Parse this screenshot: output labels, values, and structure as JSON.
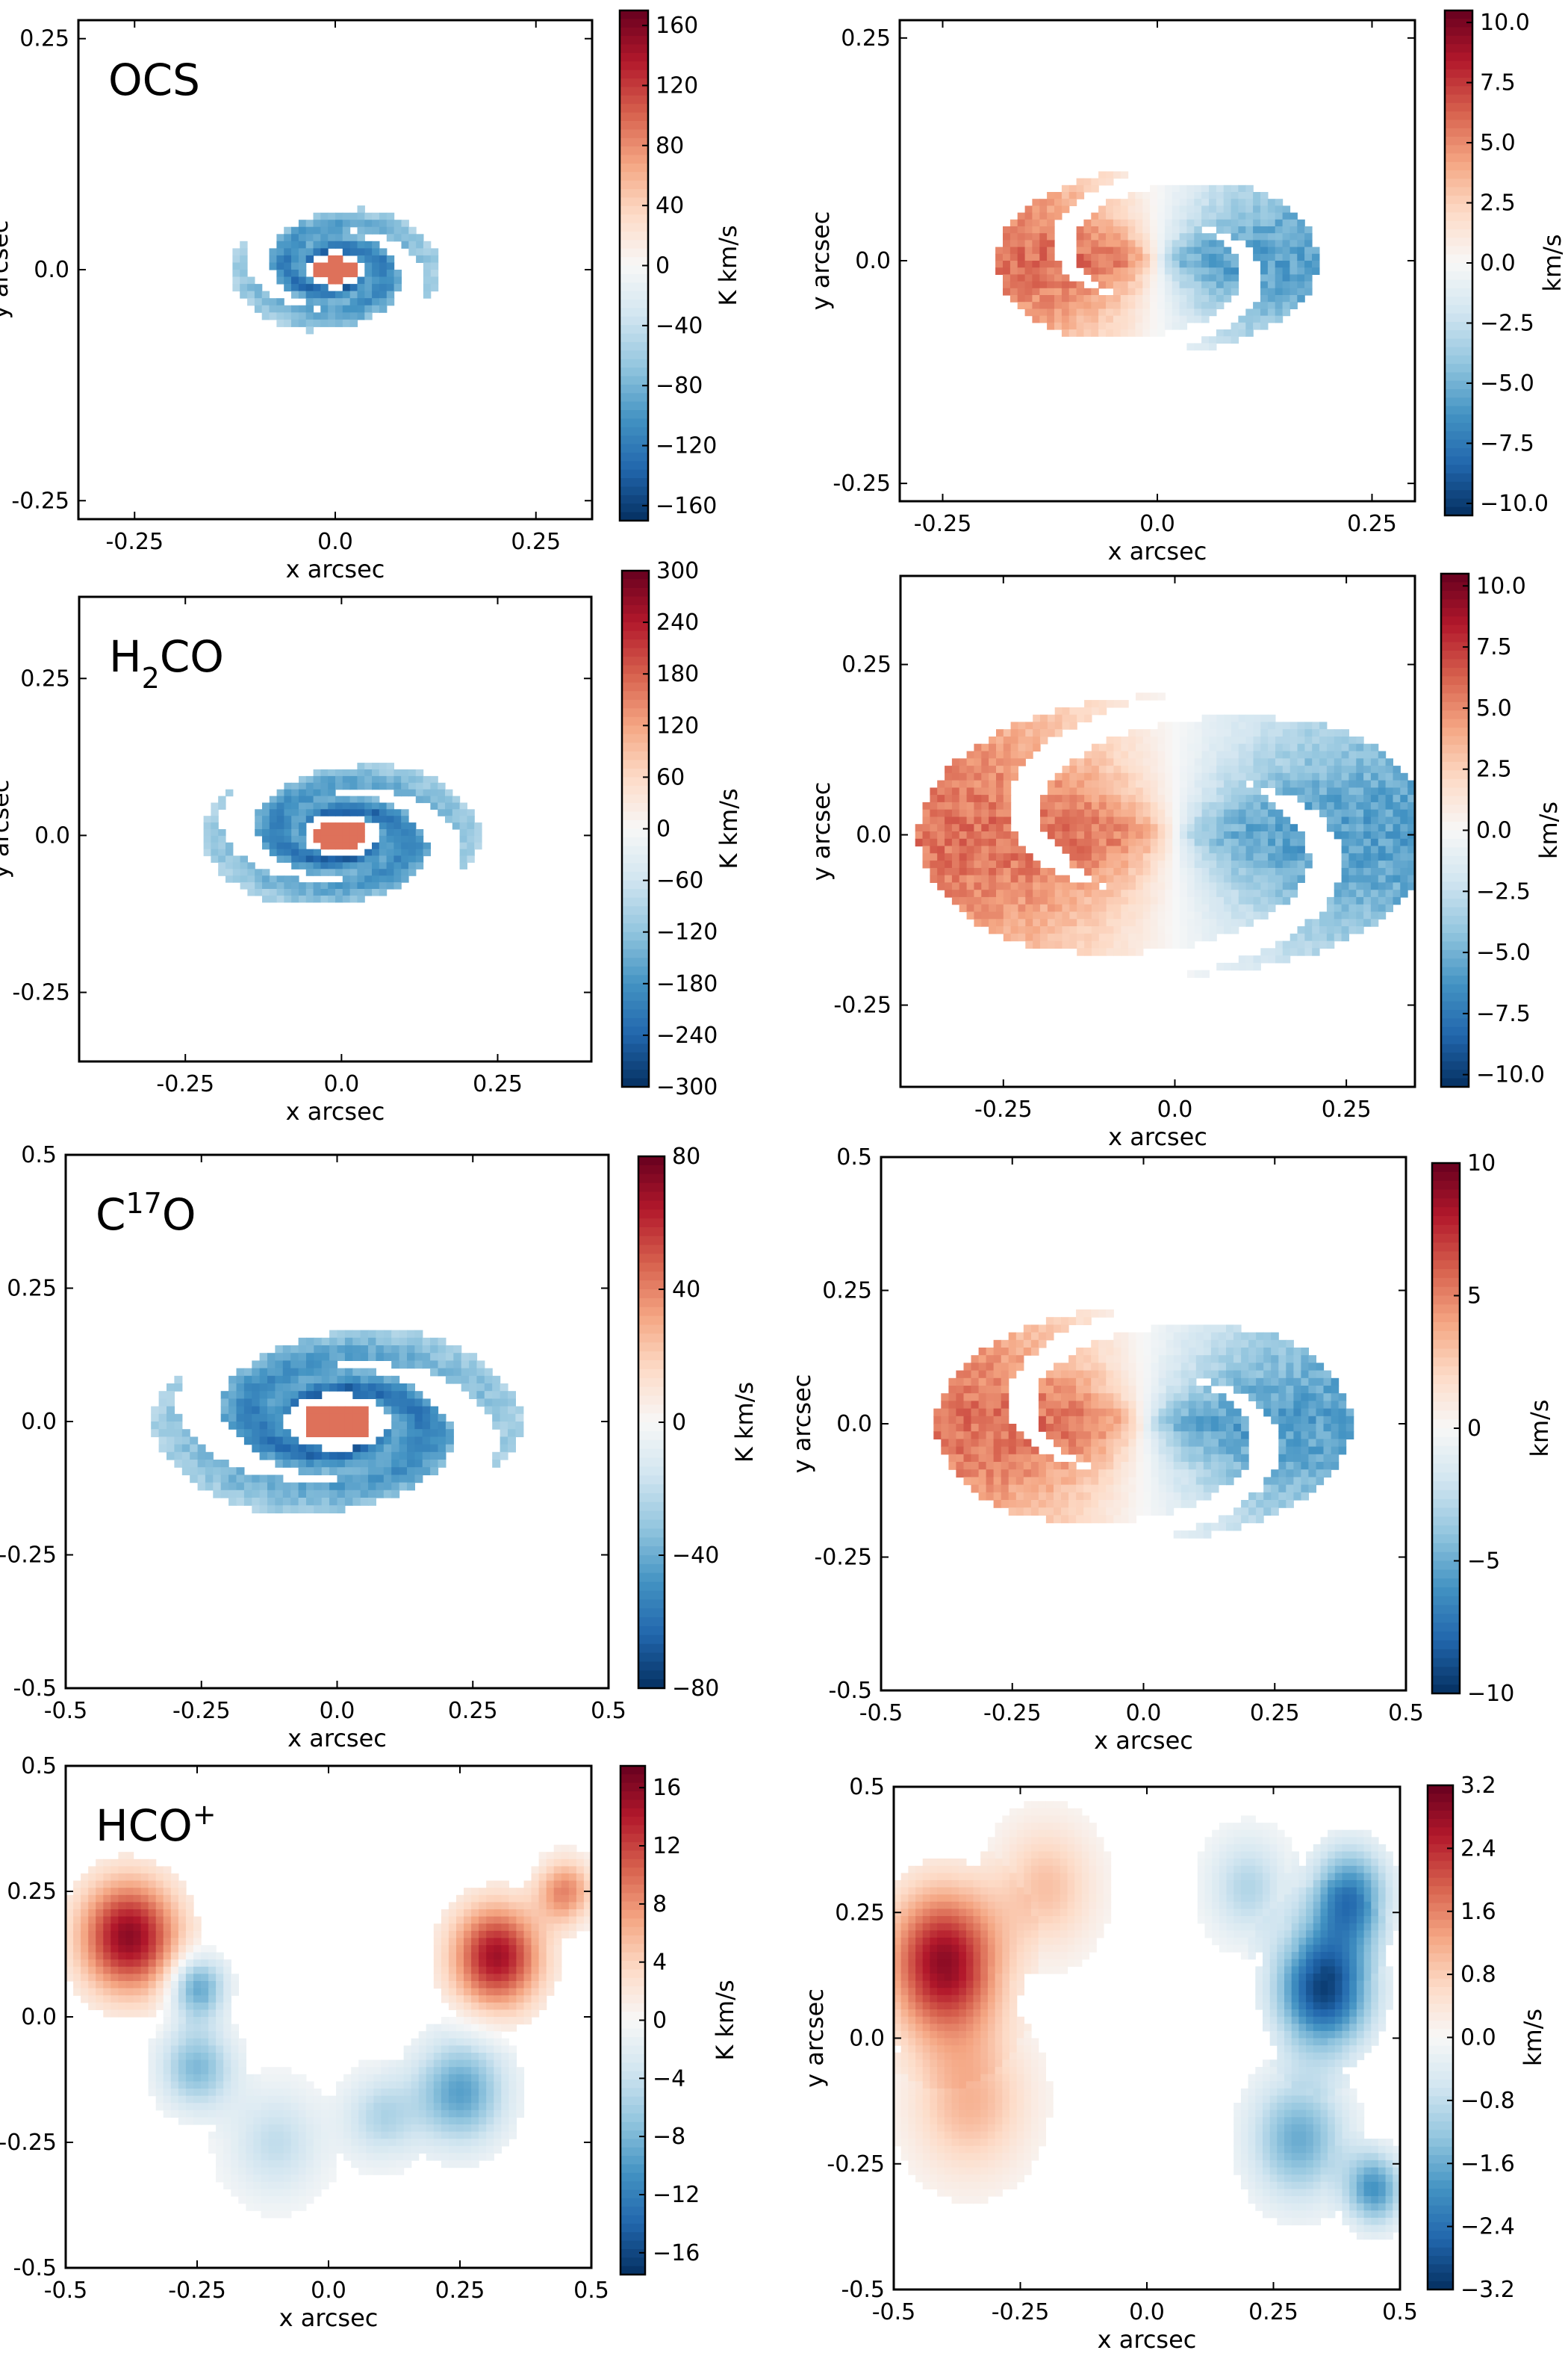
{
  "axis_text": {
    "x": "x arcsec",
    "y": "y arcsec",
    "cbar_moment0": "K km/s",
    "cbar_moment1": "km/s"
  },
  "colors": {
    "diverging": [
      "#053061",
      "#2166ac",
      "#4393c3",
      "#92c5de",
      "#d1e5f0",
      "#f7f7f7",
      "#fddbc7",
      "#f4a582",
      "#d6604d",
      "#b2182b",
      "#67001f"
    ]
  },
  "chart_data": [
    {
      "id": "ocs-m0",
      "type": "heatmap",
      "label": "OCS",
      "label_sup": "",
      "label_sub": "",
      "map_type": "moment0",
      "xlim": [
        -0.32,
        0.32
      ],
      "ylim": [
        -0.27,
        0.27
      ],
      "xticks": [
        -0.25,
        0.0,
        0.25
      ],
      "yticks": [
        -0.25,
        0.0,
        0.25
      ],
      "xtick_labels": [
        "-0.25",
        "0.0",
        "0.25"
      ],
      "ytick_labels": [
        "-0.25",
        "0.0",
        "0.25"
      ],
      "xlabel": "x arcsec",
      "ylabel": "y arcsec",
      "colorbar": {
        "label": "K km/s",
        "range": [
          -170,
          170
        ],
        "ticks": [
          -160,
          -120,
          -80,
          -40,
          0,
          40,
          80,
          120,
          160
        ],
        "tick_labels": [
          "−160",
          "−120",
          "−80",
          "−40",
          "0",
          "40",
          "80",
          "120",
          "160"
        ]
      }
    },
    {
      "id": "ocs-m1",
      "type": "heatmap",
      "label": "",
      "label_sup": "",
      "label_sub": "",
      "map_type": "moment1",
      "xlim": [
        -0.3,
        0.3
      ],
      "ylim": [
        -0.27,
        0.27
      ],
      "xticks": [
        -0.25,
        0.0,
        0.25
      ],
      "yticks": [
        -0.25,
        0.0,
        0.25
      ],
      "xtick_labels": [
        "-0.25",
        "0.0",
        "0.25"
      ],
      "ytick_labels": [
        "-0.25",
        "0.0",
        "0.25"
      ],
      "xlabel": "x arcsec",
      "ylabel": "y arcsec",
      "colorbar": {
        "label": "km/s",
        "range": [
          -10.5,
          10.5
        ],
        "ticks": [
          -10,
          -7.5,
          -5,
          -2.5,
          0,
          2.5,
          5,
          7.5,
          10
        ],
        "tick_labels": [
          "−10.0",
          "−7.5",
          "−5.0",
          "−2.5",
          "0.0",
          "2.5",
          "5.0",
          "7.5",
          "10.0"
        ]
      }
    },
    {
      "id": "h2co-m0",
      "type": "heatmap",
      "label": "H",
      "label_sup": "",
      "label_sub": "2",
      "label_tail": "CO",
      "map_type": "moment0",
      "xlim": [
        -0.42,
        0.4
      ],
      "ylim": [
        -0.36,
        0.38
      ],
      "xticks": [
        -0.25,
        0.0,
        0.25
      ],
      "yticks": [
        -0.25,
        0.0,
        0.25
      ],
      "xtick_labels": [
        "-0.25",
        "0.0",
        "0.25"
      ],
      "ytick_labels": [
        "-0.25",
        "0.0",
        "0.25"
      ],
      "xlabel": "x arcsec",
      "ylabel": "y arcsec",
      "colorbar": {
        "label": "K km/s",
        "range": [
          -300,
          300
        ],
        "ticks": [
          -300,
          -240,
          -180,
          -120,
          -60,
          0,
          60,
          120,
          180,
          240,
          300
        ],
        "tick_labels": [
          "−300",
          "−240",
          "−180",
          "−120",
          "−60",
          "0",
          "60",
          "120",
          "180",
          "240",
          "300"
        ]
      }
    },
    {
      "id": "h2co-m1",
      "type": "heatmap",
      "label": "",
      "label_sup": "",
      "label_sub": "",
      "map_type": "moment1",
      "xlim": [
        -0.4,
        0.35
      ],
      "ylim": [
        -0.37,
        0.38
      ],
      "xticks": [
        -0.25,
        0.0,
        0.25
      ],
      "yticks": [
        -0.25,
        0.0,
        0.25
      ],
      "xtick_labels": [
        "-0.25",
        "0.0",
        "0.25"
      ],
      "ytick_labels": [
        "-0.25",
        "0.0",
        "0.25"
      ],
      "xlabel": "x arcsec",
      "ylabel": "y arcsec",
      "colorbar": {
        "label": "km/s",
        "range": [
          -10.5,
          10.5
        ],
        "ticks": [
          -10,
          -7.5,
          -5,
          -2.5,
          0,
          2.5,
          5,
          7.5,
          10
        ],
        "tick_labels": [
          "−10.0",
          "−7.5",
          "−5.0",
          "−2.5",
          "0.0",
          "2.5",
          "5.0",
          "7.5",
          "10.0"
        ]
      }
    },
    {
      "id": "c17o-m0",
      "type": "heatmap",
      "label": "C",
      "label_sup": "17",
      "label_sub": "",
      "label_tail": "O",
      "map_type": "moment0",
      "xlim": [
        -0.5,
        0.5
      ],
      "ylim": [
        -0.5,
        0.5
      ],
      "xticks": [
        -0.5,
        -0.25,
        0.0,
        0.25,
        0.5
      ],
      "yticks": [
        -0.5,
        -0.25,
        0.0,
        0.25,
        0.5
      ],
      "xtick_labels": [
        "-0.5",
        "-0.25",
        "0.0",
        "0.25",
        "0.5"
      ],
      "ytick_labels": [
        "-0.5",
        "-0.25",
        "0.0",
        "0.25",
        "0.5"
      ],
      "xlabel": "x arcsec",
      "ylabel": "y arcsec",
      "colorbar": {
        "label": "K km/s",
        "range": [
          -80,
          80
        ],
        "ticks": [
          -80,
          -40,
          0,
          40,
          80
        ],
        "tick_labels": [
          "−80",
          "−40",
          "0",
          "40",
          "80"
        ]
      }
    },
    {
      "id": "c17o-m1",
      "type": "heatmap",
      "label": "",
      "label_sup": "",
      "label_sub": "",
      "map_type": "moment1",
      "xlim": [
        -0.5,
        0.5
      ],
      "ylim": [
        -0.5,
        0.5
      ],
      "xticks": [
        -0.5,
        -0.25,
        0.0,
        0.25,
        0.5
      ],
      "yticks": [
        -0.5,
        -0.25,
        0.0,
        0.25,
        0.5
      ],
      "xtick_labels": [
        "-0.5",
        "-0.25",
        "0.0",
        "0.25",
        "0.5"
      ],
      "ytick_labels": [
        "-0.5",
        "-0.25",
        "0.0",
        "0.25",
        "0.5"
      ],
      "xlabel": "x arcsec",
      "ylabel": "y arcsec",
      "colorbar": {
        "label": "km/s",
        "range": [
          -10,
          10
        ],
        "ticks": [
          -10,
          -5,
          0,
          5,
          10
        ],
        "tick_labels": [
          "−10",
          "−5",
          "0",
          "5",
          "10"
        ]
      }
    },
    {
      "id": "hco-m0",
      "type": "heatmap",
      "label": "HCO",
      "label_sup": "+",
      "label_sub": "",
      "map_type": "moment0-hco",
      "xlim": [
        -0.5,
        0.5
      ],
      "ylim": [
        -0.5,
        0.5
      ],
      "xticks": [
        -0.5,
        -0.25,
        0.0,
        0.25,
        0.5
      ],
      "yticks": [
        -0.5,
        -0.25,
        0.0,
        0.25,
        0.5
      ],
      "xtick_labels": [
        "-0.5",
        "-0.25",
        "0.0",
        "0.25",
        "0.5"
      ],
      "ytick_labels": [
        "-0.5",
        "-0.25",
        "0.0",
        "0.25",
        "0.5"
      ],
      "xlabel": "x arcsec",
      "ylabel": "y arcsec",
      "colorbar": {
        "label": "K km/s",
        "range": [
          -17.5,
          17.5
        ],
        "ticks": [
          -16,
          -12,
          -8,
          -4,
          0,
          4,
          8,
          12,
          16
        ],
        "tick_labels": [
          "−16",
          "−12",
          "−8",
          "−4",
          "0",
          "4",
          "8",
          "12",
          "16"
        ]
      }
    },
    {
      "id": "hco-m1",
      "type": "heatmap",
      "label": "",
      "label_sup": "",
      "label_sub": "",
      "map_type": "moment1-hco",
      "xlim": [
        -0.5,
        0.5
      ],
      "ylim": [
        -0.5,
        0.5
      ],
      "xticks": [
        -0.5,
        -0.25,
        0.0,
        0.25,
        0.5
      ],
      "yticks": [
        -0.5,
        -0.25,
        0.0,
        0.25,
        0.5
      ],
      "xtick_labels": [
        "-0.5",
        "-0.25",
        "0.0",
        "0.25",
        "0.5"
      ],
      "ytick_labels": [
        "-0.5",
        "-0.25",
        "0.0",
        "0.25",
        "0.5"
      ],
      "xlabel": "x arcsec",
      "ylabel": "y arcsec",
      "colorbar": {
        "label": "km/s",
        "range": [
          -3.2,
          3.2
        ],
        "ticks": [
          -3.2,
          -2.4,
          -1.6,
          -0.8,
          0,
          0.8,
          1.6,
          2.4,
          3.2
        ],
        "tick_labels": [
          "−3.2",
          "−2.4",
          "−1.6",
          "−0.8",
          "0.0",
          "0.8",
          "1.6",
          "2.4",
          "3.2"
        ]
      }
    }
  ]
}
